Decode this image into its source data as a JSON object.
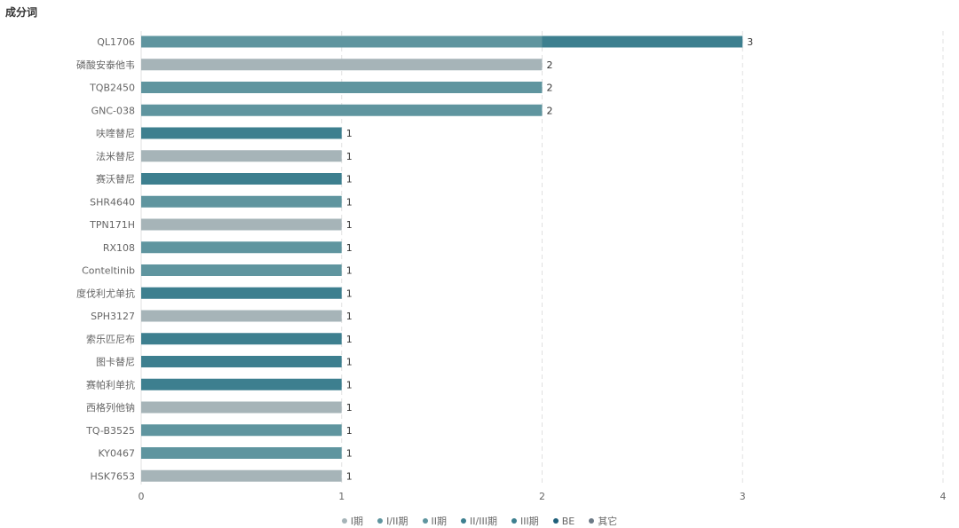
{
  "header": {
    "title": "成分词"
  },
  "colors": {
    "grid": "#e0e0e0",
    "axis": "#999999",
    "text": "#666666",
    "label": "#333333",
    "hover_stack": "#3d7f8f"
  },
  "chart_data": {
    "type": "bar",
    "orientation": "horizontal",
    "stacked": true,
    "categories": [
      "QL1706",
      "磷酸安泰他韦",
      "TQB2450",
      "GNC-038",
      "呋喹替尼",
      "法米替尼",
      "赛沃替尼",
      "SHR4640",
      "TPN171H",
      "RX108",
      "Conteltinib",
      "度伐利尤单抗",
      "SPH3127",
      "索乐匹尼布",
      "图卡替尼",
      "赛帕利单抗",
      "西格列他钠",
      "TQ-B3525",
      "KY0467",
      "HSK7653"
    ],
    "series": [
      {
        "name": "I期",
        "color": "#a6b4b8",
        "values": [
          0,
          2,
          0,
          0,
          0,
          1,
          0,
          0,
          1,
          0,
          0,
          0,
          1,
          0,
          0,
          0,
          1,
          0,
          0,
          1
        ]
      },
      {
        "name": "I/II期",
        "color": "#5f959f",
        "values": [
          2,
          0,
          2,
          2,
          0,
          0,
          0,
          1,
          0,
          1,
          1,
          0,
          0,
          0,
          0,
          0,
          0,
          1,
          1,
          0
        ]
      },
      {
        "name": "II期",
        "color": "#5f959f",
        "values": [
          0,
          0,
          0,
          0,
          0,
          0,
          0,
          0,
          0,
          0,
          0,
          0,
          0,
          0,
          0,
          0,
          0,
          0,
          0,
          0
        ]
      },
      {
        "name": "II/III期",
        "color": "#3d7f8f",
        "values": [
          1,
          0,
          0,
          0,
          0,
          0,
          0,
          0,
          0,
          0,
          0,
          0,
          0,
          0,
          0,
          0,
          0,
          0,
          0,
          0
        ]
      },
      {
        "name": "III期",
        "color": "#3d7f8f",
        "values": [
          0,
          0,
          0,
          0,
          1,
          0,
          1,
          0,
          0,
          0,
          0,
          1,
          0,
          1,
          1,
          1,
          0,
          0,
          0,
          0
        ]
      },
      {
        "name": "BE",
        "color": "#1f5f7a",
        "values": [
          0,
          0,
          0,
          0,
          0,
          0,
          0,
          0,
          0,
          0,
          0,
          0,
          0,
          0,
          0,
          0,
          0,
          0,
          0,
          0
        ]
      },
      {
        "name": "其它",
        "color": "#6c7a86",
        "values": [
          0,
          0,
          0,
          0,
          0,
          0,
          0,
          0,
          0,
          0,
          0,
          0,
          0,
          0,
          0,
          0,
          0,
          0,
          0,
          0
        ]
      }
    ],
    "totals": [
      3,
      2,
      2,
      2,
      1,
      1,
      1,
      1,
      1,
      1,
      1,
      1,
      1,
      1,
      1,
      1,
      1,
      1,
      1,
      1
    ],
    "xlim": [
      0,
      4
    ],
    "xticks": [
      "0",
      "1",
      "2",
      "3",
      "4"
    ],
    "grid": true,
    "legend_position": "bottom"
  }
}
